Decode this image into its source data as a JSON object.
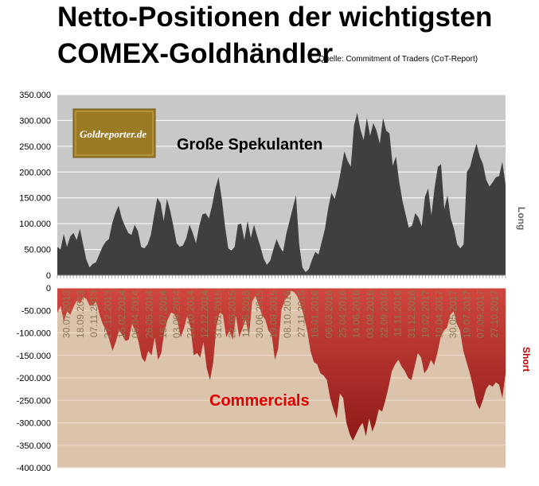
{
  "title": {
    "line1": "Netto-Positionen der wichtigsten",
    "line2": "COMEX-Goldhändler",
    "source": "Quelle: Commitment of Traders (CoT-Report)"
  },
  "logo": {
    "text": "Goldreporter.de"
  },
  "colors": {
    "upper_bg": "#c8c8c8",
    "upper_fill": "#3f3f3f",
    "lower_bg": "#dcc3ab",
    "lower_fill": "#a5231f",
    "lower_fill_light": "#cf4a40",
    "logo_bg": "#9a7a25",
    "commercials_label": "#e00000"
  },
  "chart_data": [
    {
      "type": "area",
      "name": "Große Spekulanten",
      "label": "Große Spekulanten",
      "side_label": "Long",
      "ylim": [
        0,
        350000
      ],
      "yticks": [
        "350.000",
        "300.000",
        "250.000",
        "200.000",
        "150.000",
        "100.000",
        "50.000",
        "0"
      ],
      "values": [
        55000,
        50000,
        80000,
        55000,
        75000,
        82000,
        68000,
        90000,
        60000,
        30000,
        15000,
        22000,
        25000,
        40000,
        55000,
        65000,
        70000,
        100000,
        120000,
        135000,
        110000,
        95000,
        82000,
        78000,
        98000,
        85000,
        55000,
        52000,
        60000,
        78000,
        115000,
        150000,
        140000,
        105000,
        148000,
        125000,
        95000,
        62000,
        55000,
        58000,
        72000,
        98000,
        82000,
        62000,
        95000,
        118000,
        120000,
        110000,
        135000,
        168000,
        190000,
        148000,
        95000,
        52000,
        48000,
        55000,
        98000,
        100000,
        68000,
        105000,
        72000,
        98000,
        75000,
        55000,
        32000,
        20000,
        28000,
        50000,
        70000,
        55000,
        45000,
        80000,
        105000,
        130000,
        155000,
        60000,
        15000,
        6000,
        12000,
        30000,
        45000,
        40000,
        65000,
        90000,
        130000,
        160000,
        148000,
        172000,
        205000,
        240000,
        222000,
        210000,
        290000,
        315000,
        282000,
        262000,
        305000,
        270000,
        295000,
        280000,
        255000,
        305000,
        280000,
        275000,
        212000,
        230000,
        182000,
        145000,
        118000,
        92000,
        96000,
        120000,
        112000,
        95000,
        152000,
        168000,
        116000,
        170000,
        210000,
        215000,
        128000,
        155000,
        110000,
        90000,
        60000,
        52000,
        60000,
        200000,
        210000,
        235000,
        255000,
        230000,
        215000,
        185000,
        172000,
        180000,
        190000,
        192000,
        220000,
        175000
      ]
    },
    {
      "type": "area",
      "name": "Commercials",
      "label": "Commercials",
      "side_label": "Short",
      "ylim": [
        -400000,
        0
      ],
      "yticks": [
        "0",
        "-50.000",
        "-100.000",
        "-150.000",
        "-200.000",
        "-250.000",
        "-300.000",
        "-350.000",
        "-400.000"
      ],
      "x_labels": [
        "30.07.2013",
        "18.09.2013",
        "07.11.2013",
        "27.12.2013",
        "15.02.2014",
        "06.04.2014",
        "26.05.2014",
        "15.07.2014",
        "03.09.2014",
        "23.10.2014",
        "12.12.2014",
        "31.01.2015",
        "22.03.2015",
        "11.05.2015",
        "30.06.2015",
        "19.08.2015",
        "08.10.2015",
        "27.11.2015",
        "16.01.2016",
        "06.03.2016",
        "25.04.2016",
        "14.06.2016",
        "03.08.2016",
        "22.09.2016",
        "11.11.2016",
        "31.12.2016",
        "19.02.2017",
        "10.04.2017",
        "30.05.2017",
        "19.07.2017",
        "07.09.2017",
        "27.10.2017"
      ],
      "values": [
        -55000,
        -40000,
        -75000,
        -52000,
        -60000,
        -42000,
        -28000,
        -35000,
        -20000,
        -25000,
        -40000,
        -38000,
        -30000,
        -60000,
        -80000,
        -95000,
        -115000,
        -140000,
        -120000,
        -95000,
        -105000,
        -118000,
        -115000,
        -80000,
        -95000,
        -120000,
        -155000,
        -165000,
        -140000,
        -150000,
        -110000,
        -160000,
        -145000,
        -95000,
        -70000,
        -55000,
        -58000,
        -75000,
        -110000,
        -90000,
        -62000,
        -88000,
        -150000,
        -145000,
        -155000,
        -120000,
        -178000,
        -205000,
        -165000,
        -85000,
        -55000,
        -60000,
        -110000,
        -95000,
        -115000,
        -62000,
        -110000,
        -90000,
        -70000,
        -108000,
        -30000,
        -18000,
        -38000,
        -60000,
        -70000,
        -95000,
        -105000,
        -160000,
        -135000,
        -48000,
        -28000,
        -20000,
        -6000,
        -10000,
        -20000,
        -40000,
        -65000,
        -98000,
        -142000,
        -165000,
        -170000,
        -190000,
        -195000,
        -205000,
        -245000,
        -270000,
        -290000,
        -235000,
        -245000,
        -300000,
        -325000,
        -340000,
        -325000,
        -310000,
        -300000,
        -330000,
        -290000,
        -320000,
        -300000,
        -270000,
        -275000,
        -250000,
        -220000,
        -185000,
        -170000,
        -160000,
        -175000,
        -185000,
        -200000,
        -205000,
        -175000,
        -145000,
        -155000,
        -190000,
        -180000,
        -160000,
        -172000,
        -145000,
        -110000,
        -95000,
        -88000,
        -60000,
        -52000,
        -80000,
        -95000,
        -140000,
        -165000,
        -190000,
        -220000,
        -255000,
        -270000,
        -250000,
        -225000,
        -215000,
        -220000,
        -210000,
        -215000,
        -245000,
        -190000
      ]
    }
  ]
}
